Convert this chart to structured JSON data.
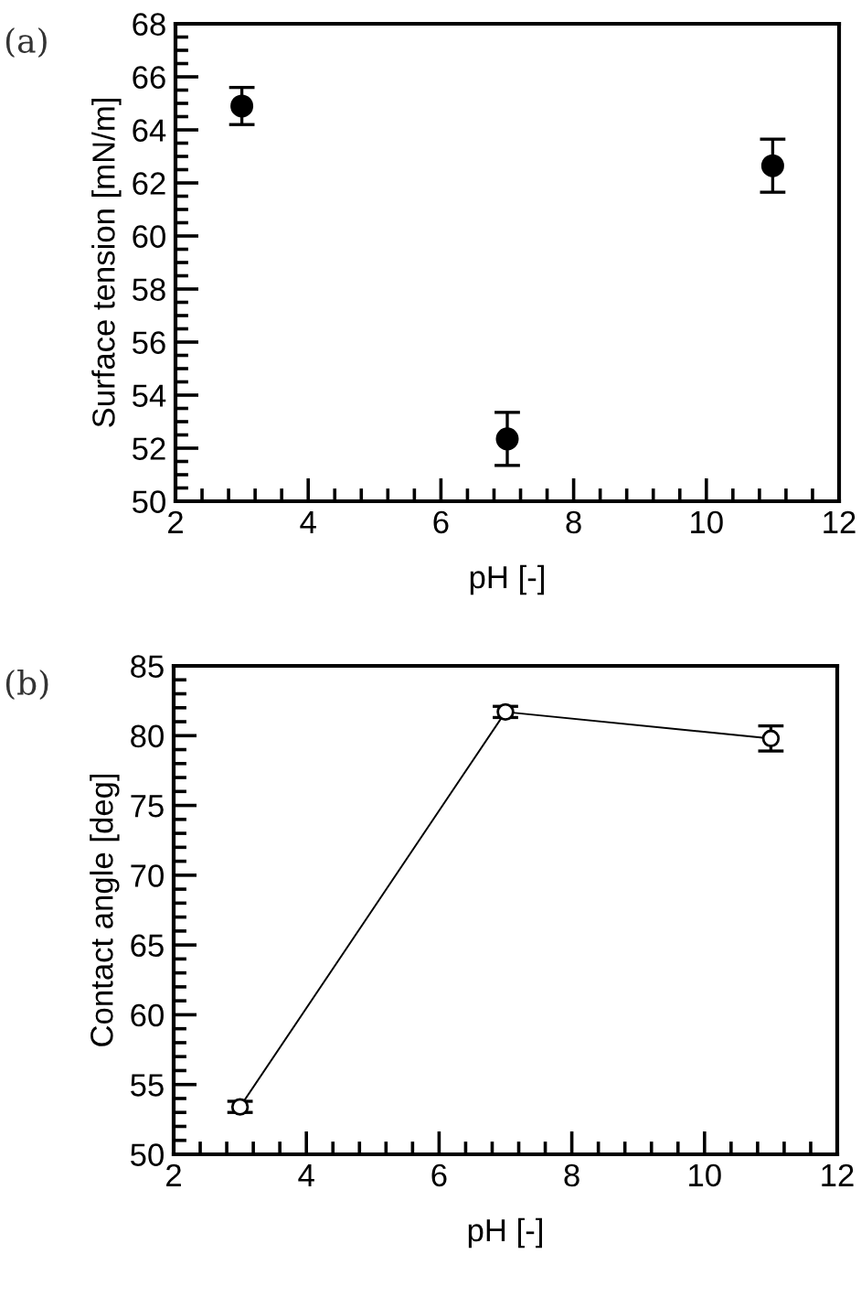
{
  "chart_data": [
    {
      "type": "scatter",
      "xlabel": "pH [-]",
      "ylabel": "Surface tension [mN/m]",
      "annotations": [
        "(a)"
      ],
      "x": [
        3,
        7,
        11
      ],
      "series": [
        {
          "color": "#000000",
          "values": [
            64.9,
            52.35,
            62.65
          ],
          "errors": [
            0.7,
            1.0,
            1.0
          ]
        }
      ],
      "xlim": [
        2,
        12
      ],
      "xticks": [
        2,
        4,
        6,
        8,
        10,
        12
      ],
      "ylim": [
        50,
        68
      ],
      "yticks": [
        50,
        52,
        54,
        56,
        58,
        60,
        62,
        64,
        66,
        68
      ],
      "marker": "circle",
      "grid": false,
      "legend": false
    },
    {
      "type": "line",
      "xlabel": "pH [-]",
      "ylabel": "Contact angle [deg]",
      "annotations": [
        "(b)"
      ],
      "x": [
        3,
        7,
        11
      ],
      "series": [
        {
          "color": "#000000",
          "values": [
            53.4,
            81.7,
            79.8
          ],
          "errors": [
            0.4,
            0.4,
            0.9
          ]
        }
      ],
      "xlim": [
        2,
        12
      ],
      "xticks": [
        2,
        4,
        6,
        8,
        10,
        12
      ],
      "ylim": [
        50,
        85
      ],
      "yticks": [
        50,
        55,
        60,
        65,
        70,
        75,
        80,
        85
      ],
      "marker": "circle",
      "line_style": "solid",
      "grid": false,
      "legend": false
    }
  ]
}
